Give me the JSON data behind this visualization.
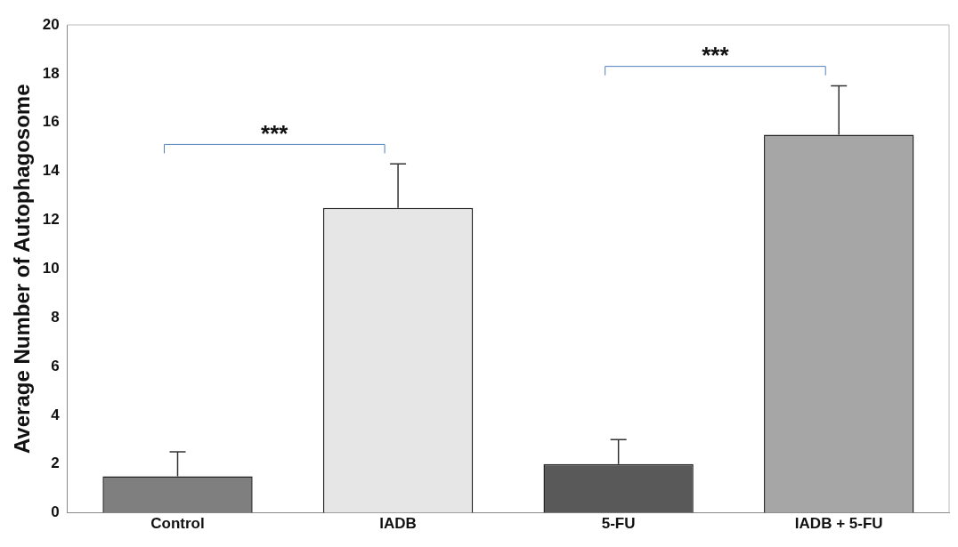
{
  "chart_data": {
    "type": "bar",
    "ylabel": "Average Number of Autophagosome",
    "categories": [
      "Control",
      "IADB",
      "5-FU",
      "IADB + 5-FU"
    ],
    "values": [
      1.5,
      12.5,
      2.0,
      15.5
    ],
    "colors": [
      "#7f7f7f",
      "#e6e6e6",
      "#595959",
      "#a6a6a6"
    ],
    "errors": [
      [
        1.5,
        2.5
      ],
      [
        12.5,
        14.3
      ],
      [
        2.0,
        3.0
      ],
      [
        15.5,
        17.5
      ]
    ],
    "ylim": [
      0,
      20
    ],
    "yticks": [
      0,
      2,
      4,
      6,
      8,
      10,
      12,
      14,
      16,
      18,
      20
    ],
    "grid": false,
    "legend": false,
    "annotations": [
      "***",
      "***"
    ]
  }
}
